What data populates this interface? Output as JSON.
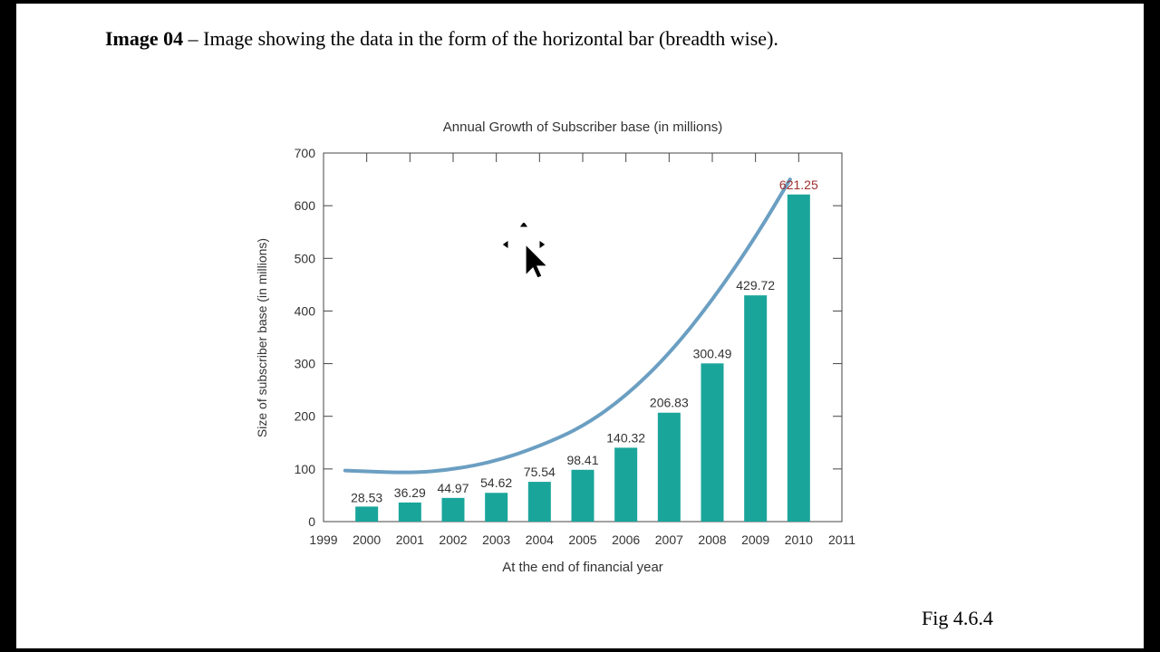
{
  "caption": {
    "label": "Image 04",
    "separator": " – ",
    "text": "Image showing the data in the form of the horizontal bar (breadth wise)."
  },
  "figure_label": "Fig 4.6.4",
  "colors": {
    "bar": "#1aa59b",
    "trend": "#6b9fc2",
    "highlight_label": "#a03030",
    "text": "#333333"
  },
  "chart_data": {
    "type": "bar",
    "title": "Annual Growth of Subscriber base (in millions)",
    "xlabel": "At the end of financial year",
    "ylabel": "Size of subscriber base (in millions)",
    "x_ticks": [
      "1999",
      "2000",
      "2001",
      "2002",
      "2003",
      "2004",
      "2005",
      "2006",
      "2007",
      "2008",
      "2009",
      "2010",
      "2011"
    ],
    "categories": [
      "2000",
      "2001",
      "2002",
      "2003",
      "2004",
      "2005",
      "2006",
      "2007",
      "2008",
      "2009",
      "2010"
    ],
    "values": [
      28.53,
      36.29,
      44.97,
      54.62,
      75.54,
      98.41,
      140.32,
      206.83,
      300.49,
      429.72,
      621.25
    ],
    "value_labels": [
      "28.53",
      "36.29",
      "44.97",
      "54.62",
      "75.54",
      "98.41",
      "140.32",
      "206.83",
      "300.49",
      "429.72",
      "621.25"
    ],
    "highlight_index": 10,
    "y_ticks": [
      0,
      100,
      200,
      300,
      400,
      500,
      600,
      700
    ],
    "ylim": [
      0,
      700
    ],
    "xlim": [
      1999,
      2011
    ],
    "trend_curve": {
      "x": [
        1999.5,
        2001,
        2002,
        2003,
        2004,
        2005,
        2006,
        2007,
        2008,
        2009,
        2009.8
      ],
      "y": [
        97,
        92,
        99,
        115,
        143,
        180,
        238,
        318,
        420,
        540,
        650
      ]
    },
    "grid": false,
    "legend": "none"
  }
}
